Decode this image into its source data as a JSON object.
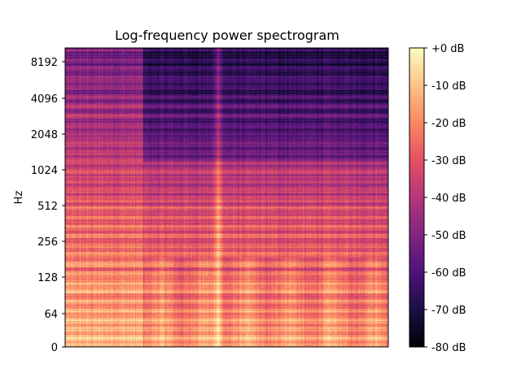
{
  "chart_data": {
    "type": "heatmap",
    "title": "Log-frequency power spectrogram",
    "xlabel": "",
    "ylabel": "Hz",
    "y_scale": "log2",
    "y_ticks": [
      {
        "label": "0",
        "value": 0
      },
      {
        "label": "64",
        "value": 64
      },
      {
        "label": "128",
        "value": 128
      },
      {
        "label": "256",
        "value": 256
      },
      {
        "label": "512",
        "value": 512
      },
      {
        "label": "1024",
        "value": 1024
      },
      {
        "label": "2048",
        "value": 2048
      },
      {
        "label": "4096",
        "value": 4096
      },
      {
        "label": "8192",
        "value": 8192
      }
    ],
    "x_ticks": [],
    "colorbar": {
      "colormap": "magma",
      "range_db": [
        -80,
        0
      ],
      "ticks": [
        {
          "label": "+0 dB",
          "value": 0
        },
        {
          "label": "-10 dB",
          "value": -10
        },
        {
          "label": "-20 dB",
          "value": -20
        },
        {
          "label": "-30 dB",
          "value": -30
        },
        {
          "label": "-40 dB",
          "value": -40
        },
        {
          "label": "-50 dB",
          "value": -50
        },
        {
          "label": "-60 dB",
          "value": -60
        },
        {
          "label": "-70 dB",
          "value": -70
        },
        {
          "label": "-80 dB",
          "value": -80
        }
      ]
    },
    "colormap_stops": [
      "#000004",
      "#1c1044",
      "#4f127b",
      "#812581",
      "#b5367a",
      "#e55064",
      "#fb8761",
      "#fec287",
      "#fcfdbf"
    ]
  }
}
